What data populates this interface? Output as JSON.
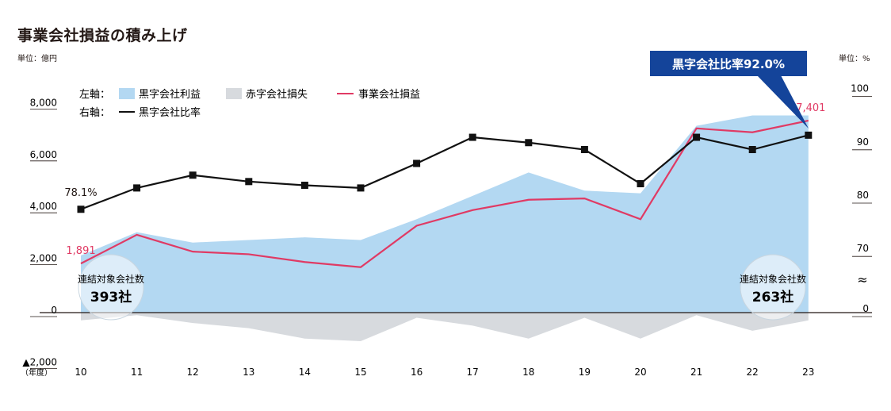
{
  "title": "事業会社損益の積み上げ",
  "left_unit": "単位：億円",
  "right_unit": "単位：%",
  "year_unit": "（年度）",
  "legend": {
    "left_axis_prefix": "左軸：",
    "right_axis_prefix": "右軸：",
    "profit": "黒字会社利益",
    "loss": "赤字会社損失",
    "operating": "事業会社損益",
    "ratio": "黒字会社比率"
  },
  "callout": "黒字会社比率92.0%",
  "company_badges": [
    {
      "label": "連結対象会社数",
      "value": "393社"
    },
    {
      "label": "連結対象会社数",
      "value": "263社"
    }
  ],
  "colors": {
    "profit_area": "#b3d8f2",
    "loss_area": "#d7dade",
    "operating_line": "#e03a64",
    "ratio_line": "#111111",
    "callout_bg": "#14449a"
  },
  "chart_data": {
    "type": "area",
    "categories": [
      "10",
      "11",
      "12",
      "13",
      "14",
      "15",
      "16",
      "17",
      "18",
      "19",
      "20",
      "21",
      "22",
      "23"
    ],
    "left_axis": {
      "ylim": [
        -2000,
        8000
      ],
      "ticks": [
        "▲2,000",
        "0",
        "2,000",
        "4,000",
        "6,000",
        "8,000"
      ],
      "tick_values": [
        -2000,
        0,
        2000,
        4000,
        6000,
        8000
      ]
    },
    "right_axis": {
      "ticks": [
        "0",
        "70",
        "80",
        "90",
        "100"
      ],
      "tick_values": [
        0,
        70,
        80,
        90,
        100
      ],
      "break_symbol": "≈"
    },
    "series": [
      {
        "name": "黒字会社利益",
        "axis": "left",
        "type": "area",
        "values": [
          2200,
          3100,
          2700,
          2800,
          2900,
          2800,
          3600,
          4500,
          5400,
          4700,
          4600,
          7200,
          7600,
          7600
        ]
      },
      {
        "name": "赤字会社損失",
        "axis": "left",
        "type": "area",
        "values": [
          -300,
          -100,
          -400,
          -600,
          -1000,
          -1100,
          -200,
          -500,
          -1000,
          -200,
          -1000,
          -100,
          -700,
          -300
        ]
      },
      {
        "name": "事業会社損益",
        "axis": "left",
        "type": "line",
        "values": [
          1891,
          3000,
          2350,
          2250,
          1950,
          1750,
          3350,
          3950,
          4350,
          4400,
          3600,
          7100,
          6950,
          7401
        ]
      },
      {
        "name": "黒字会社比率",
        "axis": "right",
        "type": "line",
        "values": [
          78.1,
          82.1,
          84.5,
          83.3,
          82.6,
          82.1,
          86.7,
          91.6,
          90.6,
          89.3,
          82.9,
          91.6,
          89.3,
          92.0
        ]
      }
    ],
    "data_labels": [
      {
        "series": "事業会社損益",
        "category": "10",
        "text": "1,891"
      },
      {
        "series": "事業会社損益",
        "category": "23",
        "text": "7,401"
      },
      {
        "series": "黒字会社比率",
        "category": "10",
        "text": "78.1%"
      }
    ]
  }
}
